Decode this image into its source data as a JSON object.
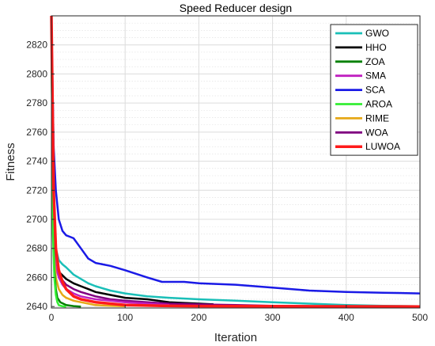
{
  "chart_data": {
    "type": "line",
    "title": "Speed Reducer design",
    "xlabel": "Iteration",
    "ylabel": "Fitness",
    "xlim": [
      0,
      500
    ],
    "ylim": [
      2639,
      2840
    ],
    "xticks": [
      0,
      100,
      200,
      300,
      400,
      500
    ],
    "yticks": [
      2640,
      2660,
      2680,
      2700,
      2720,
      2740,
      2760,
      2780,
      2800,
      2820
    ],
    "grid": true,
    "minor_grid": true,
    "legend_position": "top-right",
    "series": [
      {
        "name": "GWO",
        "color": "#1ABFB8",
        "x": [
          0,
          3,
          6,
          10,
          15,
          20,
          30,
          40,
          50,
          60,
          80,
          100,
          130,
          160,
          200,
          250,
          300,
          350,
          400,
          450,
          500
        ],
        "y": [
          2840,
          2700,
          2680,
          2672,
          2669,
          2667,
          2662,
          2659,
          2656,
          2654,
          2651,
          2649,
          2647,
          2646,
          2645,
          2644,
          2643,
          2642,
          2641,
          2640.5,
          2640.2
        ]
      },
      {
        "name": "HHO",
        "color": "#000000",
        "x": [
          0,
          3,
          6,
          10,
          20,
          30,
          40,
          50,
          60,
          80,
          100,
          130,
          160,
          200,
          220
        ],
        "y": [
          2840,
          2690,
          2670,
          2664,
          2659,
          2656,
          2654,
          2652,
          2650,
          2648,
          2646,
          2645,
          2643,
          2642,
          2641.5
        ]
      },
      {
        "name": "ZOA",
        "color": "#008000",
        "x": [
          0,
          2,
          4,
          6,
          8,
          12,
          20,
          30,
          40
        ],
        "y": [
          2840,
          2700,
          2665,
          2652,
          2646,
          2643,
          2641,
          2640.3,
          2640
        ]
      },
      {
        "name": "SMA",
        "color": "#C020C0",
        "x": [
          0,
          3,
          6,
          10,
          15,
          20,
          30,
          40,
          60,
          80,
          100,
          130,
          160
        ],
        "y": [
          2840,
          2690,
          2668,
          2660,
          2655,
          2652,
          2649,
          2647,
          2645,
          2644,
          2643,
          2642,
          2641
        ]
      },
      {
        "name": "SCA",
        "color": "#1A1AE6",
        "x": [
          0,
          3,
          6,
          10,
          15,
          20,
          25,
          30,
          40,
          50,
          60,
          80,
          100,
          130,
          150,
          180,
          200,
          250,
          300,
          350,
          400,
          450,
          500
        ],
        "y": [
          2840,
          2750,
          2720,
          2700,
          2692,
          2689,
          2688,
          2687,
          2680,
          2673,
          2670,
          2668,
          2665,
          2660,
          2657,
          2657,
          2656,
          2655,
          2653,
          2651,
          2650,
          2649.5,
          2649
        ]
      },
      {
        "name": "AROA",
        "color": "#33EE33",
        "x": [
          0,
          2,
          4,
          6,
          8,
          10,
          14,
          20
        ],
        "y": [
          2840,
          2690,
          2660,
          2648,
          2643,
          2641,
          2640.3,
          2640
        ]
      },
      {
        "name": "RIME",
        "color": "#E6A817",
        "x": [
          0,
          3,
          6,
          10,
          15,
          20,
          30,
          40,
          50,
          60,
          80,
          100
        ],
        "y": [
          2840,
          2680,
          2660,
          2652,
          2648,
          2646,
          2644,
          2643,
          2642,
          2641,
          2640.5,
          2640.2
        ]
      },
      {
        "name": "WOA",
        "color": "#800080",
        "x": [
          0,
          3,
          6,
          10,
          15,
          20,
          30,
          40,
          60,
          80,
          100,
          130,
          160,
          200,
          250,
          300,
          350
        ],
        "y": [
          2840,
          2700,
          2675,
          2664,
          2658,
          2655,
          2652,
          2650,
          2647,
          2645,
          2644,
          2643,
          2642,
          2641.5,
          2641,
          2640.5,
          2640.3
        ]
      },
      {
        "name": "LUWOA",
        "color": "#FF1A1A",
        "x": [
          0,
          3,
          6,
          10,
          15,
          20,
          30,
          40,
          50,
          60,
          80,
          100,
          150,
          200,
          300,
          400,
          500
        ],
        "y": [
          2840,
          2720,
          2680,
          2665,
          2657,
          2652,
          2647,
          2645,
          2644,
          2643,
          2642,
          2641,
          2640.5,
          2640.3,
          2640.2,
          2640.1,
          2640
        ]
      }
    ]
  }
}
